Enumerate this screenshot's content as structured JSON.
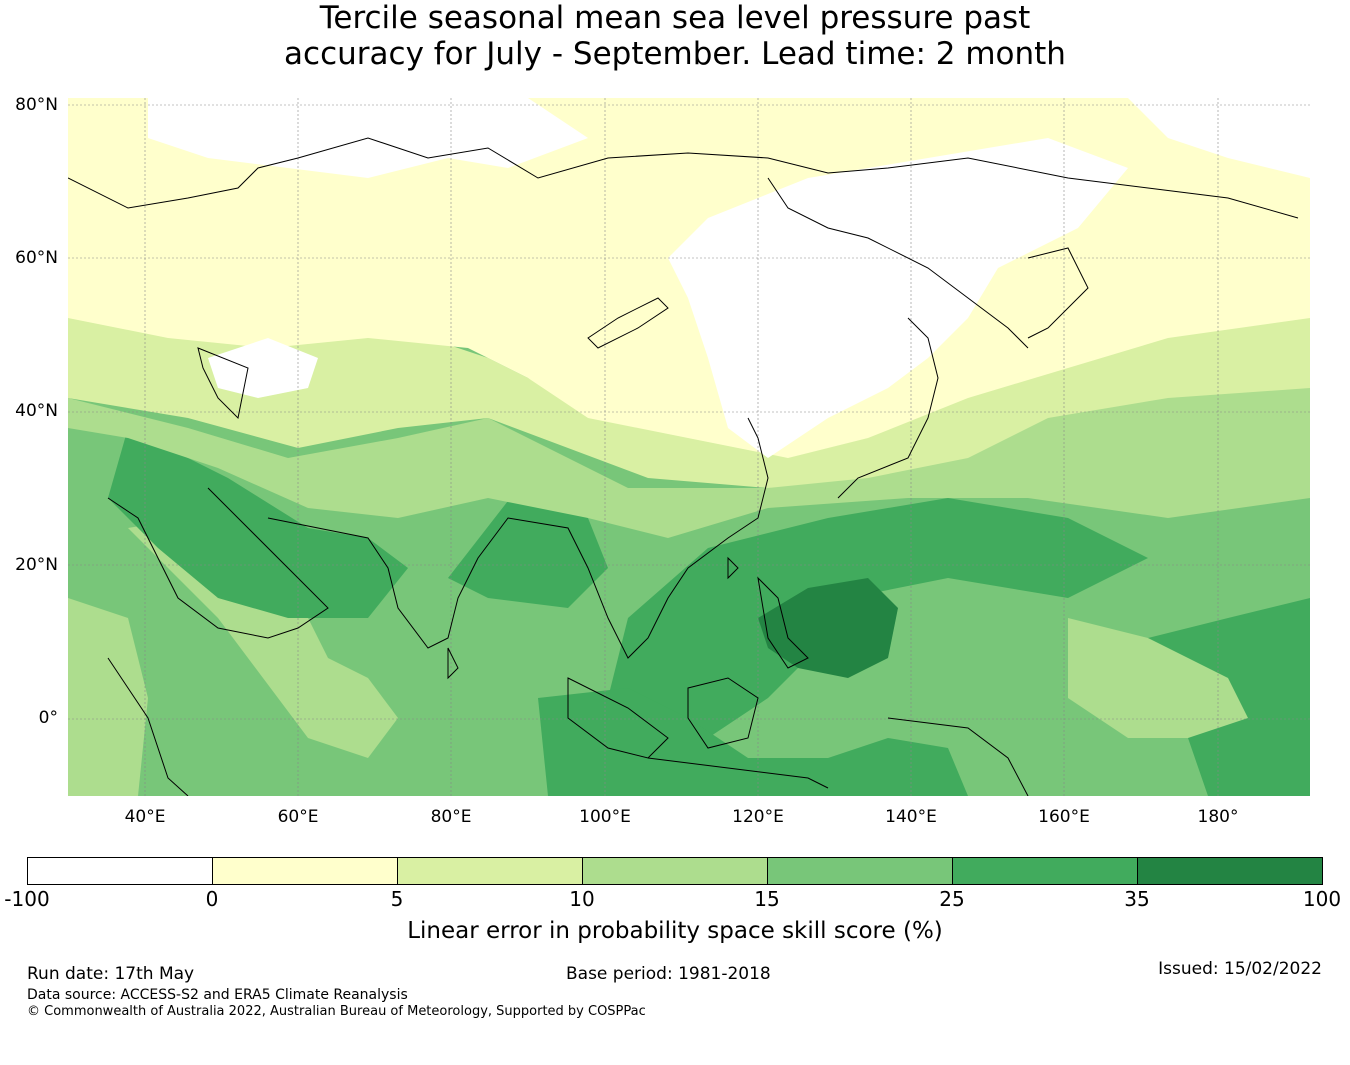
{
  "title": {
    "line1": "Tercile seasonal mean sea level pressure past",
    "line2": "accuracy for July - September. Lead time: 2 month"
  },
  "map": {
    "lat_labels": [
      "80°N",
      "60°N",
      "40°N",
      "20°N",
      "0°"
    ],
    "lon_labels": [
      "40°E",
      "60°E",
      "80°E",
      "100°E",
      "120°E",
      "140°E",
      "160°E",
      "180°"
    ]
  },
  "colorbar": {
    "ticks": [
      "-100",
      "0",
      "5",
      "10",
      "15",
      "25",
      "35",
      "100"
    ],
    "colors": [
      "#ffffff",
      "#ffffcc",
      "#d9f0a3",
      "#addd8e",
      "#78c679",
      "#41ab5d",
      "#238443"
    ],
    "label": "Linear error in probability space skill score (%)"
  },
  "footer": {
    "run_date": "Run date: 17th May",
    "base_period": "Base period: 1981-2018",
    "issued": "Issued: 15/02/2022",
    "data_source": "Data source: ACCESS-S2 and ERA5 Climate Reanalysis",
    "copyright": "© Commonwealth of Australia 2022, Australian Bureau of Meteorology, Supported by COSPPac"
  }
}
